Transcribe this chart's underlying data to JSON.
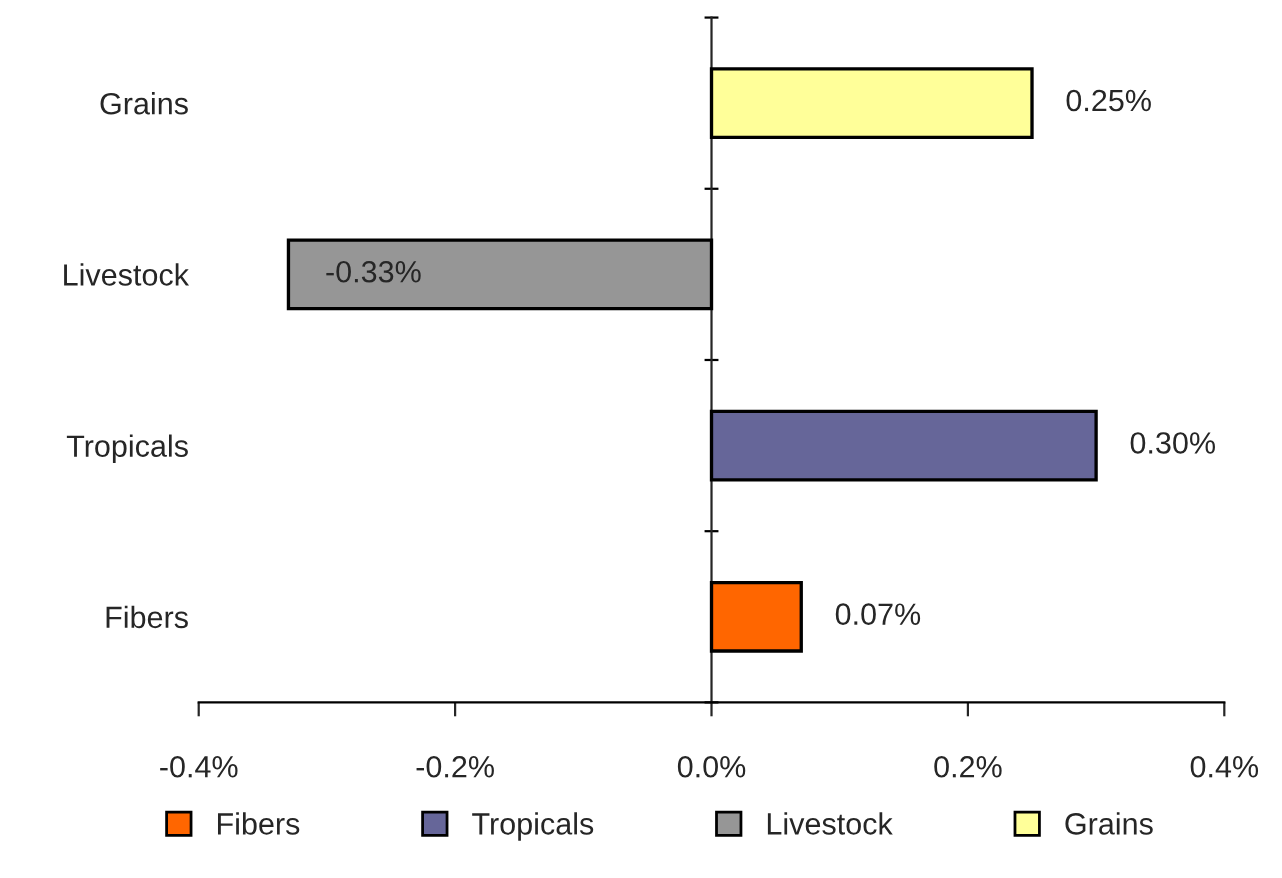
{
  "chart_data": {
    "type": "bar",
    "orientation": "horizontal",
    "categories": [
      "Grains",
      "Livestock",
      "Tropicals",
      "Fibers"
    ],
    "series": [
      {
        "name": "Fibers",
        "color": "#ff6600",
        "values": [
          null,
          null,
          null,
          0.07
        ],
        "value_labels": [
          null,
          null,
          null,
          "0.07%"
        ]
      },
      {
        "name": "Tropicals",
        "color": "#666699",
        "values": [
          null,
          null,
          0.3,
          null
        ],
        "value_labels": [
          null,
          null,
          "0.30%",
          null
        ]
      },
      {
        "name": "Livestock",
        "color": "#969696",
        "values": [
          null,
          -0.33,
          null,
          null
        ],
        "value_labels": [
          null,
          "-0.33%",
          null,
          null
        ]
      },
      {
        "name": "Grains",
        "color": "#ffff99",
        "values": [
          0.25,
          null,
          null,
          null
        ],
        "value_labels": [
          "0.25%",
          null,
          null,
          null
        ]
      }
    ],
    "xlim": [
      -0.4,
      0.4
    ],
    "xticks": [
      {
        "value": -0.4,
        "label": "-0.4%"
      },
      {
        "value": -0.2,
        "label": "-0.2%"
      },
      {
        "value": 0.0,
        "label": "0.0%"
      },
      {
        "value": 0.2,
        "label": "0.2%"
      },
      {
        "value": 0.4,
        "label": "0.4%"
      }
    ],
    "legend": "bottom"
  }
}
